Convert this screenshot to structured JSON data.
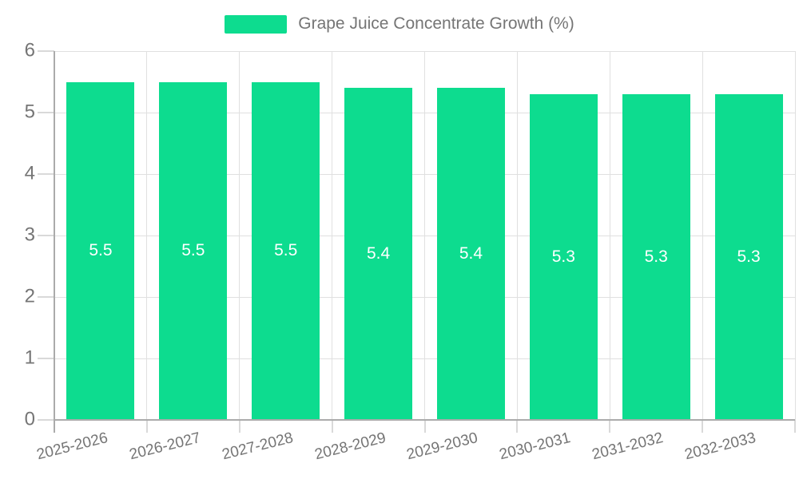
{
  "legend": {
    "label": "Grape Juice Concentrate Growth (%)",
    "swatch_color": "#0ddc8f"
  },
  "chart_data": {
    "type": "bar",
    "title": "Grape Juice Concentrate Growth (%)",
    "series_name": "Grape Juice Concentrate Growth (%)",
    "categories": [
      "2025-2026",
      "2026-2027",
      "2027-2028",
      "2028-2029",
      "2029-2030",
      "2030-2031",
      "2031-2032",
      "2032-2033"
    ],
    "values": [
      5.5,
      5.5,
      5.5,
      5.4,
      5.4,
      5.3,
      5.3,
      5.3
    ],
    "value_labels": [
      "5.5",
      "5.5",
      "5.5",
      "5.4",
      "5.4",
      "5.3",
      "5.3",
      "5.3"
    ],
    "xlabel": "",
    "ylabel": "",
    "ylim": [
      0,
      6
    ],
    "yticks": [
      0,
      1,
      2,
      3,
      4,
      5,
      6
    ],
    "grid": true,
    "legend_position": "top-center",
    "bar_color": "#0ddc8f",
    "value_label_color": "#ffffff"
  },
  "colors": {
    "background": "#ffffff",
    "bar": "#0ddc8f",
    "grid_line": "#e0e0e0",
    "tick_line": "#d9d9d9",
    "axis_line": "#ababab",
    "axis_text": "#757575",
    "legend_text": "#757575",
    "value_text": "#ffffff"
  }
}
